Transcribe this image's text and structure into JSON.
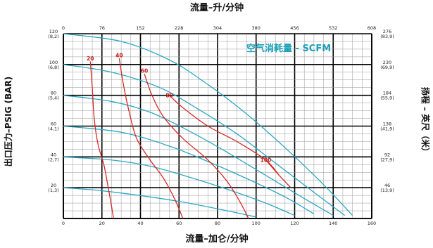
{
  "chart_data": {
    "type": "line",
    "title": "",
    "legend_title": "空气消耗量 - SCFM",
    "legend_position": "top-right",
    "grid": true,
    "xlabel_bottom": "流量–加仑/分钟",
    "xlabel_top": "流量–升/分钟",
    "ylabel_left": "出口压力–PSIG (BAR)",
    "ylabel_right": "扬程 – 英尺（米）",
    "xlim": [
      0,
      160
    ],
    "ylim": [
      0,
      120
    ],
    "x_ticks_bottom": [
      "0",
      "20",
      "40",
      "60",
      "80",
      "100",
      "120",
      "140",
      "160"
    ],
    "x_ticks_top": [
      "0",
      "76",
      "152",
      "228",
      "304",
      "380",
      "456",
      "532",
      "608"
    ],
    "y_ticks_left": [
      {
        "value": 120,
        "psi": "120",
        "bar": "(8,2)"
      },
      {
        "value": 100,
        "psi": "100",
        "bar": "(6,8)"
      },
      {
        "value": 80,
        "psi": "80",
        "bar": "(5,4)"
      },
      {
        "value": 60,
        "psi": "60",
        "bar": "(4,1)"
      },
      {
        "value": 40,
        "psi": "40",
        "bar": "(2,7)"
      },
      {
        "value": 20,
        "psi": "20",
        "bar": "(1,3)"
      }
    ],
    "y_ticks_right": [
      {
        "value": 120,
        "ft": "276",
        "m": "(83,9)"
      },
      {
        "value": 100,
        "ft": "230",
        "m": "(69,9)"
      },
      {
        "value": 80,
        "ft": "184",
        "m": "(55,9)"
      },
      {
        "value": 60,
        "ft": "138",
        "m": "(41,9)"
      },
      {
        "value": 40,
        "ft": "92",
        "m": "(27,9)"
      },
      {
        "value": 20,
        "ft": "46",
        "m": "(13,9)"
      }
    ],
    "pressure_curves": [
      {
        "points": [
          [
            0,
            120
          ],
          [
            30,
            115
          ],
          [
            55,
            103
          ],
          [
            75,
            87
          ],
          [
            95,
            68
          ],
          [
            115,
            46
          ],
          [
            135,
            22
          ],
          [
            150,
            2
          ]
        ]
      },
      {
        "points": [
          [
            0,
            100
          ],
          [
            25,
            95
          ],
          [
            50,
            85
          ],
          [
            70,
            71
          ],
          [
            90,
            55
          ],
          [
            110,
            36
          ],
          [
            130,
            17
          ],
          [
            146,
            2
          ]
        ]
      },
      {
        "points": [
          [
            0,
            80
          ],
          [
            25,
            76
          ],
          [
            45,
            69
          ],
          [
            65,
            57
          ],
          [
            85,
            43
          ],
          [
            105,
            28
          ],
          [
            125,
            13
          ],
          [
            140,
            2
          ]
        ]
      },
      {
        "points": [
          [
            0,
            60
          ],
          [
            30,
            56
          ],
          [
            55,
            47
          ],
          [
            75,
            37
          ],
          [
            95,
            26
          ],
          [
            115,
            14
          ],
          [
            130,
            3
          ]
        ]
      },
      {
        "points": [
          [
            0,
            40
          ],
          [
            25,
            38
          ],
          [
            45,
            34
          ],
          [
            65,
            27
          ],
          [
            85,
            19
          ],
          [
            105,
            10
          ],
          [
            120,
            2
          ]
        ]
      },
      {
        "points": [
          [
            0,
            20
          ],
          [
            20,
            18
          ],
          [
            45,
            14
          ],
          [
            65,
            10
          ],
          [
            85,
            5
          ],
          [
            100,
            1
          ]
        ]
      }
    ],
    "air_consumption_curves": [
      {
        "label": "20",
        "label_at": [
          14,
          104
        ],
        "points": [
          [
            14,
            102
          ],
          [
            15,
            85
          ],
          [
            16,
            65
          ],
          [
            18,
            48
          ],
          [
            21,
            35
          ],
          [
            23,
            22
          ],
          [
            25,
            8
          ],
          [
            26,
            0
          ]
        ]
      },
      {
        "label": "40",
        "label_at": [
          29,
          106
        ],
        "points": [
          [
            29,
            104
          ],
          [
            31,
            88
          ],
          [
            34,
            70
          ],
          [
            38,
            52
          ],
          [
            45,
            38
          ],
          [
            52,
            26
          ],
          [
            58,
            12
          ],
          [
            62,
            0
          ]
        ]
      },
      {
        "label": "60",
        "label_at": [
          42,
          96
        ],
        "points": [
          [
            42,
            94
          ],
          [
            46,
            80
          ],
          [
            52,
            66
          ],
          [
            62,
            52
          ],
          [
            75,
            38
          ],
          [
            85,
            24
          ],
          [
            92,
            10
          ],
          [
            96,
            0
          ]
        ]
      },
      {
        "label": "80",
        "label_at": [
          55,
          80
        ],
        "points": [
          [
            55,
            80
          ],
          [
            62,
            72
          ],
          [
            75,
            60
          ],
          [
            90,
            50
          ],
          [
            105,
            38
          ],
          [
            112,
            28
          ]
        ]
      },
      {
        "label": "100",
        "label_at": [
          105,
          38
        ],
        "points": [
          [
            105,
            38
          ],
          [
            112,
            28
          ],
          [
            118,
            20
          ]
        ]
      }
    ]
  }
}
